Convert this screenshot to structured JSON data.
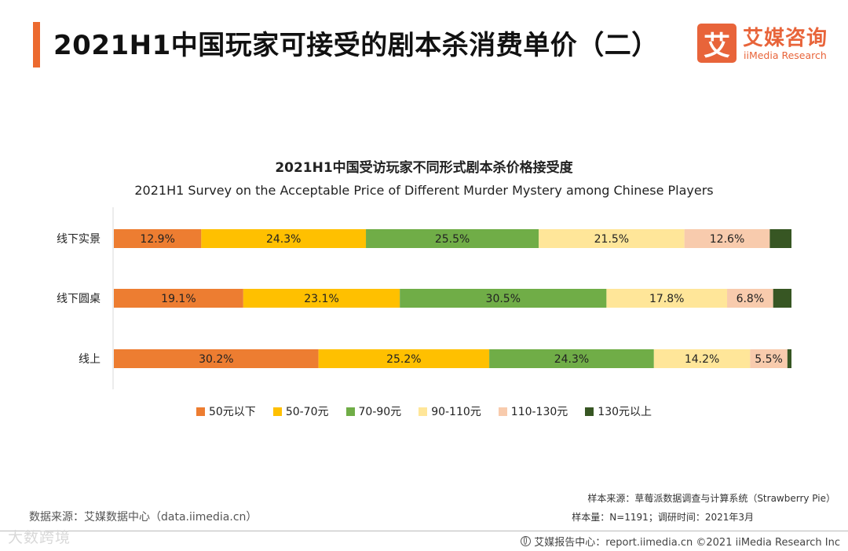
{
  "header": {
    "title": "2021H1中国玩家可接受的剧本杀消费单价（二）"
  },
  "logo": {
    "mark": "艾",
    "name_cn": "艾媒咨询",
    "name_en": "iiMedia Research"
  },
  "chart_data": {
    "type": "bar",
    "orientation": "horizontal",
    "stacked": true,
    "percent": true,
    "title": "2021H1中国受访玩家不同形式剧本杀价格接受度",
    "subtitle": "2021H1 Survey on the Acceptable Price of Different Murder Mystery among Chinese Players",
    "categories": [
      "线下实景",
      "线下圆桌",
      "线上"
    ],
    "series": [
      {
        "name": "50元以下",
        "color": "#ed7d31",
        "values": [
          12.9,
          19.1,
          30.2
        ],
        "labels": [
          "12.9%",
          "19.1%",
          "30.2%"
        ]
      },
      {
        "name": "50-70元",
        "color": "#ffc000",
        "values": [
          24.3,
          23.1,
          25.2
        ],
        "labels": [
          "24.3%",
          "23.1%",
          "25.2%"
        ]
      },
      {
        "name": "70-90元",
        "color": "#70ad47",
        "values": [
          25.5,
          30.5,
          24.3
        ],
        "labels": [
          "25.5%",
          "30.5%",
          "24.3%"
        ]
      },
      {
        "name": "90-110元",
        "color": "#ffe699",
        "values": [
          21.5,
          17.8,
          14.2
        ],
        "labels": [
          "21.5%",
          "17.8%",
          "14.2%"
        ]
      },
      {
        "name": "110-130元",
        "color": "#f8cbad",
        "values": [
          12.6,
          6.8,
          5.5
        ],
        "labels": [
          "12.6%",
          "6.8%",
          "5.5%"
        ]
      },
      {
        "name": "130元以上",
        "color": "#375623",
        "values": [
          3.2,
          2.7,
          0.6
        ],
        "labels": [
          "",
          "",
          ""
        ]
      }
    ],
    "xlim": [
      0,
      100
    ],
    "legend_position": "bottom",
    "grid": false
  },
  "footer": {
    "data_source": "数据来源：艾媒数据中心（data.iimedia.cn）",
    "sample_source": "样本来源：草莓派数据调查与计算系统（Strawberry Pie）",
    "sample_size": "样本量：N=1191；调研时间：2021年3月",
    "report": "艾媒报告中心：report.iimedia.cn  ©2021  iiMedia Research  Inc",
    "watermark": "大数跨境"
  }
}
